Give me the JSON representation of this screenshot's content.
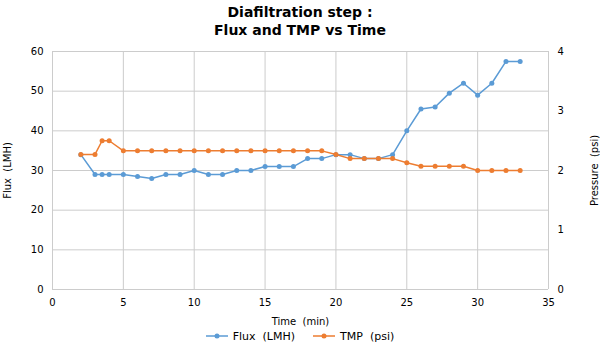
{
  "chart_data": {
    "type": "line",
    "title": "Diafiltration step :",
    "subtitle": "Flux and TMP vs Time",
    "xlabel": "Time  (min)",
    "ylabel": "Flux  (LMH)",
    "y2label": "Pressure  (psi)",
    "x": [
      2,
      3,
      3.5,
      4,
      5,
      6,
      7,
      8,
      9,
      10,
      11,
      12,
      13,
      14,
      15,
      16,
      17,
      18,
      19,
      20,
      21,
      22,
      23,
      24,
      25,
      26,
      27,
      28,
      29,
      30,
      31,
      32,
      33
    ],
    "series": [
      {
        "name": "Flux  (LMH)",
        "color": "#5B9BD5",
        "marker": "circle",
        "values": [
          34,
          29,
          29,
          29,
          29,
          28.5,
          28,
          29,
          29,
          30,
          29,
          29,
          30,
          30,
          31,
          31,
          31,
          33,
          33,
          34,
          34,
          33,
          33,
          34,
          40,
          45.5,
          46,
          49.5,
          52,
          49,
          52,
          57.5,
          57.5
        ]
      },
      {
        "name": "TMP  (psi)",
        "color": "#ED7D31",
        "marker": "circle",
        "axis": "y2",
        "values": [
          2.27,
          2.27,
          2.5,
          2.5,
          2.33,
          2.33,
          2.33,
          2.33,
          2.33,
          2.33,
          2.33,
          2.33,
          2.33,
          2.33,
          2.33,
          2.33,
          2.33,
          2.33,
          2.33,
          2.27,
          2.2,
          2.2,
          2.2,
          2.2,
          2.13,
          2.07,
          2.07,
          2.07,
          2.07,
          2.0,
          2.0,
          2.0,
          2.0
        ]
      }
    ],
    "xlim": [
      0,
      35
    ],
    "xticks": [
      0,
      5,
      10,
      15,
      20,
      25,
      30,
      35
    ],
    "ylim": [
      0,
      60
    ],
    "yticks": [
      0,
      10,
      20,
      30,
      40,
      50,
      60
    ],
    "y2lim": [
      0,
      4
    ],
    "y2ticks": [
      0,
      1,
      2,
      3,
      4
    ],
    "grid": true,
    "legend": "bottom"
  }
}
